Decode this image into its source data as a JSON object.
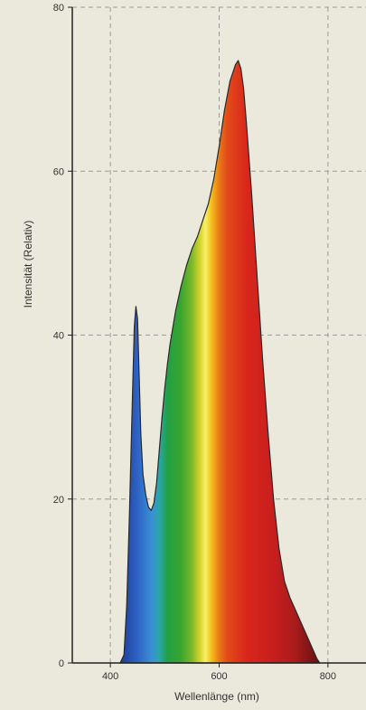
{
  "chart_data": {
    "type": "area",
    "xlabel": "Wellenlänge (nm)",
    "ylabel": "Intensität (Relativ)",
    "xlim": [
      330,
      870
    ],
    "ylim": [
      0,
      80
    ],
    "xticks": [
      400,
      600,
      800
    ],
    "yticks": [
      0,
      20,
      40,
      60,
      80
    ],
    "grid": true,
    "fill": "visible-spectrum gradient (blue → green → yellow → red)",
    "series": [
      {
        "x": [
          418,
          425,
          430,
          435,
          440,
          444,
          447,
          450,
          453,
          456,
          460,
          465,
          470,
          475,
          480,
          485,
          490,
          495,
          500,
          505,
          510,
          520,
          530,
          540,
          550,
          560,
          570,
          580,
          590,
          600,
          610,
          620,
          630,
          635,
          640,
          645,
          650,
          660,
          670,
          680,
          690,
          700,
          710,
          720,
          730,
          740,
          750,
          760,
          770,
          780,
          785
        ],
        "y": [
          0,
          1,
          7,
          18,
          31,
          41,
          43.5,
          42,
          35,
          28,
          23,
          20.5,
          19,
          18.6,
          19.5,
          22,
          26,
          30,
          33.5,
          36.5,
          39,
          43,
          46,
          48.5,
          50.5,
          52,
          54,
          56,
          59,
          63,
          67.5,
          71,
          73,
          73.5,
          72.5,
          70,
          66,
          57,
          47,
          37,
          28,
          20,
          14,
          10,
          8,
          6.5,
          5,
          3.5,
          2,
          0.5,
          0
        ]
      }
    ]
  }
}
